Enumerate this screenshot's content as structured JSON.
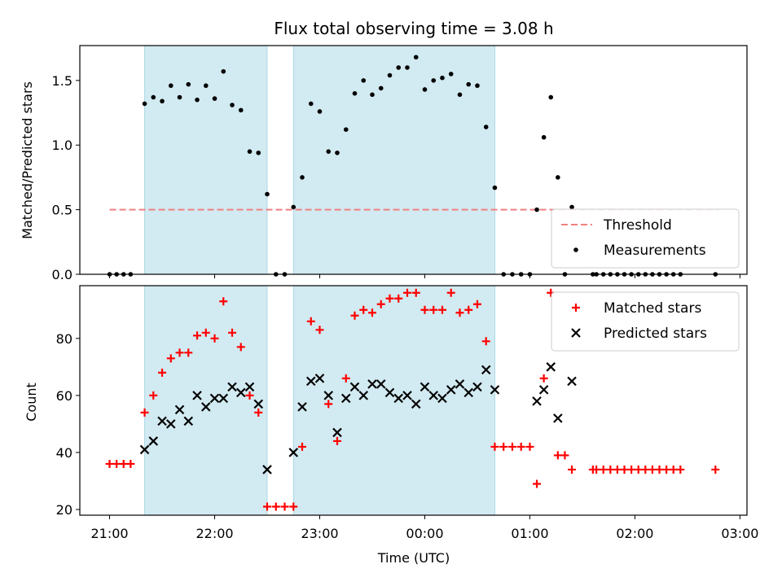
{
  "chart_data": {
    "type": "scatter",
    "title": "Flux total observing time = 3.08 h",
    "xlabel": "Time (UTC)",
    "x_tick_labels": [
      "21:00",
      "22:00",
      "23:00",
      "00:00",
      "01:00",
      "02:00",
      "03:00"
    ],
    "x_tick_times": [
      "21:00",
      "22:00",
      "23:00",
      "00:00",
      "01:00",
      "02:00",
      "03:00"
    ],
    "xlim": [
      "20:43",
      "03:04"
    ],
    "shaded_intervals": [
      [
        "21:20",
        "22:30"
      ],
      [
        "22:45",
        "00:40"
      ]
    ],
    "shade_color": "#add8e6",
    "panels": [
      {
        "ylabel": "Matched/Predicted stars",
        "ylim": [
          0,
          1.77
        ],
        "yticks": [
          0.0,
          0.5,
          1.0,
          1.5
        ],
        "y_tick_labels": [
          "0.0",
          "0.5",
          "1.0",
          "1.5"
        ],
        "threshold": {
          "name": "Threshold",
          "value": 0.5,
          "x_range": [
            "21:00",
            "02:48"
          ],
          "color": "#f08080"
        },
        "series": [
          {
            "name": "Measurements",
            "color": "#000000",
            "marker": "dot",
            "points": [
              [
                "21:00",
                0.0
              ],
              [
                "21:04",
                0.0
              ],
              [
                "21:08",
                0.0
              ],
              [
                "21:12",
                0.0
              ],
              [
                "21:20",
                1.32
              ],
              [
                "21:25",
                1.37
              ],
              [
                "21:30",
                1.34
              ],
              [
                "21:35",
                1.46
              ],
              [
                "21:40",
                1.37
              ],
              [
                "21:45",
                1.47
              ],
              [
                "21:50",
                1.35
              ],
              [
                "21:55",
                1.46
              ],
              [
                "22:00",
                1.36
              ],
              [
                "22:05",
                1.57
              ],
              [
                "22:10",
                1.31
              ],
              [
                "22:15",
                1.27
              ],
              [
                "22:20",
                0.95
              ],
              [
                "22:25",
                0.94
              ],
              [
                "22:30",
                0.62
              ],
              [
                "22:35",
                0.0
              ],
              [
                "22:40",
                0.0
              ],
              [
                "22:45",
                0.52
              ],
              [
                "22:50",
                0.75
              ],
              [
                "22:55",
                1.32
              ],
              [
                "23:00",
                1.26
              ],
              [
                "23:05",
                0.95
              ],
              [
                "23:10",
                0.94
              ],
              [
                "23:15",
                1.12
              ],
              [
                "23:20",
                1.4
              ],
              [
                "23:25",
                1.5
              ],
              [
                "23:30",
                1.39
              ],
              [
                "23:35",
                1.44
              ],
              [
                "23:40",
                1.54
              ],
              [
                "23:45",
                1.6
              ],
              [
                "23:50",
                1.6
              ],
              [
                "23:55",
                1.68
              ],
              [
                "00:00",
                1.43
              ],
              [
                "00:05",
                1.5
              ],
              [
                "00:10",
                1.52
              ],
              [
                "00:15",
                1.55
              ],
              [
                "00:20",
                1.39
              ],
              [
                "00:25",
                1.47
              ],
              [
                "00:30",
                1.46
              ],
              [
                "00:35",
                1.14
              ],
              [
                "00:40",
                0.67
              ],
              [
                "00:45",
                0.0
              ],
              [
                "00:50",
                0.0
              ],
              [
                "00:55",
                0.0
              ],
              [
                "01:00",
                0.0
              ],
              [
                "01:04",
                0.5
              ],
              [
                "01:08",
                1.06
              ],
              [
                "01:12",
                1.37
              ],
              [
                "01:16",
                0.75
              ],
              [
                "01:20",
                0.0
              ],
              [
                "01:24",
                0.52
              ],
              [
                "01:36",
                0.0
              ],
              [
                "01:38",
                0.0
              ],
              [
                "01:42",
                0.0
              ],
              [
                "01:46",
                0.0
              ],
              [
                "01:50",
                0.0
              ],
              [
                "01:54",
                0.0
              ],
              [
                "01:58",
                0.0
              ],
              [
                "02:02",
                0.0
              ],
              [
                "02:06",
                0.0
              ],
              [
                "02:10",
                0.0
              ],
              [
                "02:14",
                0.0
              ],
              [
                "02:18",
                0.0
              ],
              [
                "02:22",
                0.0
              ],
              [
                "02:26",
                0.0
              ],
              [
                "02:46",
                0.0
              ]
            ]
          }
        ],
        "legend": {
          "location": "lower-right",
          "entries": [
            "Threshold",
            "Measurements"
          ]
        }
      },
      {
        "ylabel": "Count",
        "ylim": [
          18,
          98.5
        ],
        "yticks": [
          20,
          40,
          60,
          80
        ],
        "y_tick_labels": [
          "20",
          "40",
          "60",
          "80"
        ],
        "series": [
          {
            "name": "Matched stars",
            "color": "#ff0000",
            "marker": "plus",
            "points": [
              [
                "21:00",
                36
              ],
              [
                "21:04",
                36
              ],
              [
                "21:08",
                36
              ],
              [
                "21:12",
                36
              ],
              [
                "21:20",
                54
              ],
              [
                "21:25",
                60
              ],
              [
                "21:30",
                68
              ],
              [
                "21:35",
                73
              ],
              [
                "21:40",
                75
              ],
              [
                "21:45",
                75
              ],
              [
                "21:50",
                81
              ],
              [
                "21:55",
                82
              ],
              [
                "22:00",
                80
              ],
              [
                "22:05",
                93
              ],
              [
                "22:10",
                82
              ],
              [
                "22:15",
                77
              ],
              [
                "22:20",
                60
              ],
              [
                "22:25",
                54
              ],
              [
                "22:30",
                21
              ],
              [
                "22:35",
                21
              ],
              [
                "22:40",
                21
              ],
              [
                "22:45",
                21
              ],
              [
                "22:50",
                42
              ],
              [
                "22:55",
                86
              ],
              [
                "23:00",
                83
              ],
              [
                "23:05",
                57
              ],
              [
                "23:10",
                44
              ],
              [
                "23:15",
                66
              ],
              [
                "23:20",
                88
              ],
              [
                "23:25",
                90
              ],
              [
                "23:30",
                89
              ],
              [
                "23:35",
                92
              ],
              [
                "23:40",
                94
              ],
              [
                "23:45",
                94
              ],
              [
                "23:50",
                96
              ],
              [
                "23:55",
                96
              ],
              [
                "00:00",
                90
              ],
              [
                "00:05",
                90
              ],
              [
                "00:10",
                90
              ],
              [
                "00:15",
                96
              ],
              [
                "00:20",
                89
              ],
              [
                "00:25",
                90
              ],
              [
                "00:30",
                92
              ],
              [
                "00:35",
                79
              ],
              [
                "00:40",
                42
              ],
              [
                "00:45",
                42
              ],
              [
                "00:50",
                42
              ],
              [
                "00:55",
                42
              ],
              [
                "01:00",
                42
              ],
              [
                "01:04",
                29
              ],
              [
                "01:08",
                66
              ],
              [
                "01:12",
                96
              ],
              [
                "01:16",
                39
              ],
              [
                "01:20",
                39
              ],
              [
                "01:24",
                34
              ],
              [
                "01:36",
                34
              ],
              [
                "01:38",
                34
              ],
              [
                "01:42",
                34
              ],
              [
                "01:46",
                34
              ],
              [
                "01:50",
                34
              ],
              [
                "01:54",
                34
              ],
              [
                "01:58",
                34
              ],
              [
                "02:02",
                34
              ],
              [
                "02:06",
                34
              ],
              [
                "02:10",
                34
              ],
              [
                "02:14",
                34
              ],
              [
                "02:18",
                34
              ],
              [
                "02:22",
                34
              ],
              [
                "02:26",
                34
              ],
              [
                "02:46",
                34
              ]
            ]
          },
          {
            "name": "Predicted stars",
            "color": "#000000",
            "marker": "x",
            "points": [
              [
                "21:20",
                41
              ],
              [
                "21:25",
                44
              ],
              [
                "21:30",
                51
              ],
              [
                "21:35",
                50
              ],
              [
                "21:40",
                55
              ],
              [
                "21:45",
                51
              ],
              [
                "21:50",
                60
              ],
              [
                "21:55",
                56
              ],
              [
                "22:00",
                59
              ],
              [
                "22:05",
                59
              ],
              [
                "22:10",
                63
              ],
              [
                "22:15",
                61
              ],
              [
                "22:20",
                63
              ],
              [
                "22:25",
                57
              ],
              [
                "22:30",
                34
              ],
              [
                "22:45",
                40
              ],
              [
                "22:50",
                56
              ],
              [
                "22:55",
                65
              ],
              [
                "23:00",
                66
              ],
              [
                "23:05",
                60
              ],
              [
                "23:10",
                47
              ],
              [
                "23:15",
                59
              ],
              [
                "23:20",
                63
              ],
              [
                "23:25",
                60
              ],
              [
                "23:30",
                64
              ],
              [
                "23:35",
                64
              ],
              [
                "23:40",
                61
              ],
              [
                "23:45",
                59
              ],
              [
                "23:50",
                60
              ],
              [
                "23:55",
                57
              ],
              [
                "00:00",
                63
              ],
              [
                "00:05",
                60
              ],
              [
                "00:10",
                59
              ],
              [
                "00:15",
                62
              ],
              [
                "00:20",
                64
              ],
              [
                "00:25",
                61
              ],
              [
                "00:30",
                63
              ],
              [
                "00:35",
                69
              ],
              [
                "00:40",
                62
              ],
              [
                "01:04",
                58
              ],
              [
                "01:08",
                62
              ],
              [
                "01:12",
                70
              ],
              [
                "01:16",
                52
              ],
              [
                "01:24",
                65
              ]
            ]
          }
        ],
        "legend": {
          "location": "upper-right",
          "entries": [
            "Matched stars",
            "Predicted stars"
          ]
        }
      }
    ]
  }
}
